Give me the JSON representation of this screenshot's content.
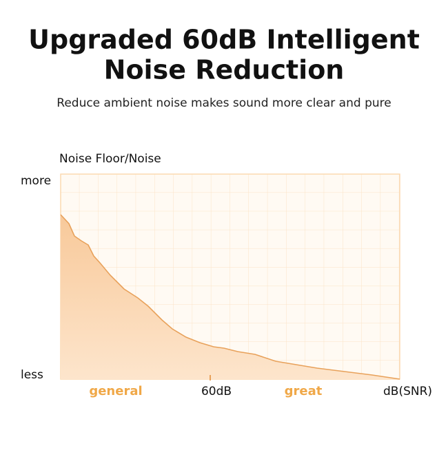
{
  "header": {
    "title_line1": "Upgraded 60dB Intelligent",
    "title_line2": "Noise Reduction",
    "subtitle": "Reduce ambient noise makes sound more clear and pure"
  },
  "diagram": {
    "y_axis_title": "Noise Floor/Noise",
    "y_top": "more",
    "y_bottom": "less",
    "x_labels": {
      "left": "general",
      "middle": "60dB",
      "right": "great",
      "axis": "dB(SNR)"
    }
  }
}
